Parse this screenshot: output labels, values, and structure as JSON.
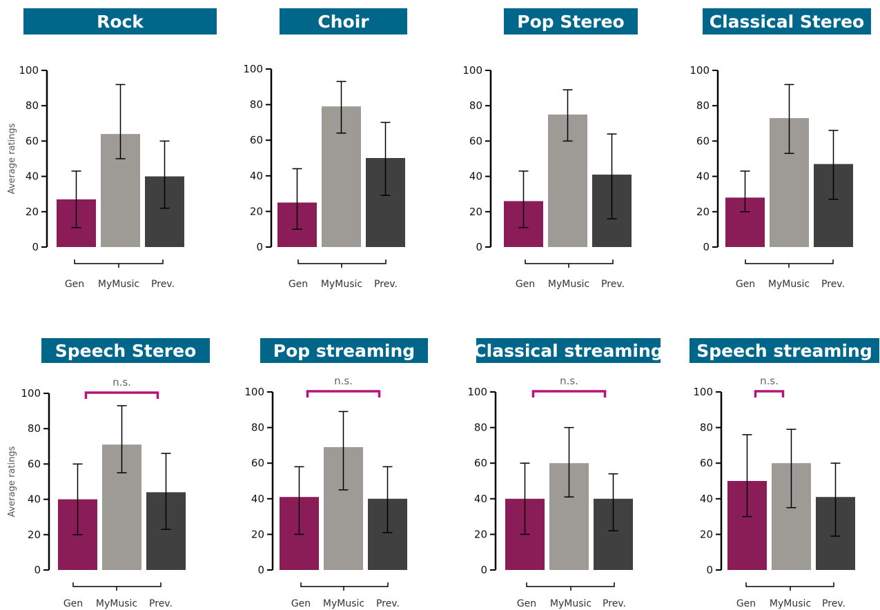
{
  "colors": {
    "title_bg": "#00668a",
    "title_text": "#ffffff",
    "gen": "#8a1d57",
    "mymusic": "#9e9a96",
    "prev": "#404040",
    "significance": "#b5157a",
    "axis": "#000000"
  },
  "shared": {
    "categories": [
      "Gen",
      "MyMusic",
      "Prev."
    ],
    "ylabel": "Average ratings",
    "yticks": [
      "0",
      "20",
      "40",
      "60",
      "80",
      "100"
    ],
    "ns_label": "n.s."
  },
  "chart_data": [
    {
      "type": "bar",
      "title": "Rock",
      "categories": [
        "Gen",
        "MyMusic",
        "Prev."
      ],
      "values": [
        27,
        64,
        40
      ],
      "err_low": [
        11,
        50,
        22
      ],
      "err_high": [
        43,
        92,
        60
      ],
      "ylim": [
        0,
        100
      ],
      "ylabel": "Average ratings",
      "ns": null
    },
    {
      "type": "bar",
      "title": "Choir",
      "categories": [
        "Gen",
        "MyMusic",
        "Prev."
      ],
      "values": [
        25,
        79,
        50
      ],
      "err_low": [
        10,
        64,
        29
      ],
      "err_high": [
        44,
        93,
        70
      ],
      "ylim": [
        0,
        100
      ],
      "ylabel": "",
      "ns": null
    },
    {
      "type": "bar",
      "title": "Pop Stereo",
      "categories": [
        "Gen",
        "MyMusic",
        "Prev."
      ],
      "values": [
        26,
        75,
        41
      ],
      "err_low": [
        11,
        60,
        16
      ],
      "err_high": [
        43,
        89,
        64
      ],
      "ylim": [
        0,
        100
      ],
      "ylabel": "",
      "ns": null
    },
    {
      "type": "bar",
      "title": "Classical Stereo",
      "categories": [
        "Gen",
        "MyMusic",
        "Prev."
      ],
      "values": [
        28,
        73,
        47
      ],
      "err_low": [
        20,
        53,
        27
      ],
      "err_high": [
        43,
        92,
        66
      ],
      "ylim": [
        0,
        100
      ],
      "ylabel": "",
      "ns": null
    },
    {
      "type": "bar",
      "title": "Speech Stereo",
      "categories": [
        "Gen",
        "MyMusic",
        "Prev."
      ],
      "values": [
        40,
        71,
        44
      ],
      "err_low": [
        20,
        55,
        23
      ],
      "err_high": [
        60,
        93,
        66
      ],
      "ylim": [
        0,
        100
      ],
      "ylabel": "Average ratings",
      "ns": [
        0,
        2
      ]
    },
    {
      "type": "bar",
      "title": "Pop streaming",
      "categories": [
        "Gen",
        "MyMusic",
        "Prev."
      ],
      "values": [
        41,
        69,
        40
      ],
      "err_low": [
        20,
        45,
        21
      ],
      "err_high": [
        58,
        89,
        58
      ],
      "ylim": [
        0,
        100
      ],
      "ylabel": "",
      "ns": [
        0,
        2
      ]
    },
    {
      "type": "bar",
      "title": "Classical streaming",
      "categories": [
        "Gen",
        "MyMusic",
        "Prev."
      ],
      "values": [
        40,
        60,
        40
      ],
      "err_low": [
        20,
        41,
        22
      ],
      "err_high": [
        60,
        80,
        54
      ],
      "ylim": [
        0,
        100
      ],
      "ylabel": "",
      "ns": [
        0,
        2
      ]
    },
    {
      "type": "bar",
      "title": "Speech streaming",
      "categories": [
        "Gen",
        "MyMusic",
        "Prev."
      ],
      "values": [
        50,
        60,
        41
      ],
      "err_low": [
        30,
        35,
        19
      ],
      "err_high": [
        76,
        79,
        60
      ],
      "ylim": [
        0,
        100
      ],
      "ylabel": "",
      "ns": [
        0,
        1
      ]
    }
  ]
}
